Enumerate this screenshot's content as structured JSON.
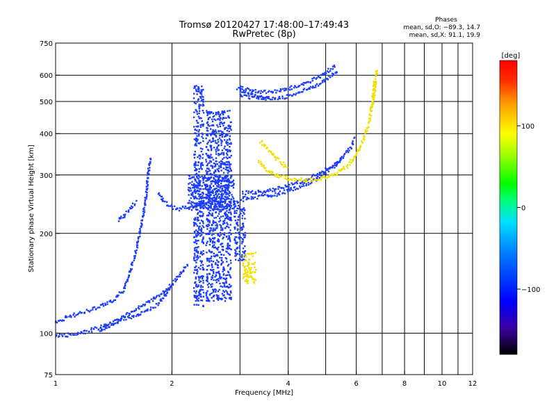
{
  "chart_data": {
    "type": "scatter",
    "title": "Tromsø 20120427 17:48:00–17:49:43",
    "subtitle": "RwPretec (8p)",
    "xlabel": "Frequency [MHz]",
    "ylabel": "Stationary phase Virtual Height [km]",
    "x_scale": "log",
    "y_scale": "log",
    "xlim": [
      1,
      12
    ],
    "ylim": [
      75,
      750
    ],
    "x_ticks": [
      1,
      2,
      4,
      6,
      8,
      10,
      12
    ],
    "x_tick_labels": [
      "1",
      "2",
      "4",
      "6",
      "8",
      "10",
      "12"
    ],
    "x_gridlines": [
      2,
      3,
      4,
      5,
      6,
      7,
      8,
      9,
      10,
      11
    ],
    "y_ticks": [
      75,
      100,
      200,
      300,
      400,
      500,
      600,
      750
    ],
    "y_tick_labels": [
      "75",
      "100",
      "200",
      "300",
      "400",
      "500",
      "600",
      "750"
    ],
    "y_gridlines": [
      100,
      200,
      300,
      400,
      500,
      600
    ],
    "grid": true,
    "phase_stats": {
      "header": "Phases",
      "line_o": "mean, sd,O:  −89.3, 14.7",
      "line_x": "mean, sd,X:  91.1, 19.9"
    },
    "colorbar": {
      "label": "[deg]",
      "ticks": [
        100,
        0,
        -100
      ],
      "tick_labels": [
        "100",
        "0",
        "−100"
      ],
      "range": [
        -180,
        180
      ],
      "colors": [
        "#000000",
        "#3a00a0",
        "#0000ff",
        "#0080ff",
        "#00e0ff",
        "#00ff80",
        "#00ff00",
        "#a0ff00",
        "#ffff00",
        "#ffa000",
        "#ff3000",
        "#ff0000"
      ]
    },
    "series": [
      {
        "mode": "O",
        "color": "#1a3cff",
        "traces": [
          {
            "kind": "path",
            "x": [
              1.0,
              1.1,
              1.2,
              1.3,
              1.4,
              1.5,
              1.6,
              1.7,
              1.8,
              1.9,
              2.0,
              2.1,
              2.2
            ],
            "y": [
              98,
              99,
              101,
              104,
              107,
              112,
              118,
              122,
              127,
              133,
              140,
              150,
              162
            ]
          },
          {
            "kind": "path",
            "x": [
              1.0,
              1.1,
              1.25,
              1.4,
              1.5,
              1.55,
              1.6,
              1.65,
              1.7,
              1.73,
              1.76
            ],
            "y": [
              108,
              113,
              118,
              125,
              135,
              150,
              170,
              200,
              240,
              290,
              340
            ]
          },
          {
            "kind": "path",
            "x": [
              1.3,
              1.4,
              1.5,
              1.6,
              1.7,
              1.8,
              1.9,
              2.0
            ],
            "y": [
              102,
              106,
              110,
              113,
              116,
              120,
              128,
              140
            ]
          },
          {
            "kind": "path",
            "x": [
              1.45,
              1.5,
              1.55,
              1.62
            ],
            "y": [
              220,
              225,
              235,
              250
            ]
          },
          {
            "kind": "path",
            "x": [
              1.85,
              1.9,
              2.0,
              2.1,
              2.2,
              2.3,
              2.4,
              2.5,
              2.6,
              2.7,
              2.8,
              2.9
            ],
            "y": [
              265,
              250,
              240,
              237,
              240,
              242,
              244,
              246,
              248,
              250,
              252,
              255
            ]
          },
          {
            "kind": "band",
            "x": [
              2.28,
              2.42
            ],
            "y": [
              120,
              560
            ]
          },
          {
            "kind": "band",
            "x": [
              2.45,
              2.85
            ],
            "y": [
              125,
              470
            ]
          },
          {
            "kind": "band",
            "x": [
              2.2,
              2.9
            ],
            "y": [
              235,
              300
            ]
          },
          {
            "kind": "band",
            "x": [
              2.9,
              3.1
            ],
            "y": [
              165,
              250
            ]
          },
          {
            "kind": "path",
            "x": [
              3.0,
              3.2,
              3.4,
              3.6,
              3.8,
              4.0,
              4.3,
              4.6,
              4.9,
              5.2,
              5.5,
              5.8,
              5.95
            ],
            "y": [
              255,
              256,
              258,
              260,
              264,
              270,
              277,
              287,
              300,
              316,
              337,
              362,
              390
            ]
          },
          {
            "kind": "path",
            "x": [
              3.05,
              3.25,
              3.45,
              3.65,
              3.85,
              4.05,
              4.3,
              4.55,
              4.8,
              5.05,
              5.3,
              5.55
            ],
            "y": [
              265,
              266,
              268,
              271,
              275,
              280,
              286,
              294,
              303,
              313,
              325,
              340
            ]
          },
          {
            "kind": "path",
            "x": [
              3.0,
              3.3,
              3.6,
              3.9,
              4.2,
              4.5,
              4.8,
              5.1,
              5.4
            ],
            "y": [
              520,
              512,
              510,
              515,
              528,
              545,
              565,
              590,
              620
            ]
          },
          {
            "kind": "path",
            "x": [
              3.0,
              3.2,
              3.5,
              3.8,
              4.1,
              4.4,
              4.7,
              5.0,
              5.3
            ],
            "y": [
              550,
              540,
              533,
              538,
              550,
              565,
              585,
              610,
              640
            ]
          },
          {
            "kind": "path",
            "x": [
              2.95,
              3.1,
              3.25,
              3.4,
              3.55
            ],
            "y": [
              545,
              532,
              522,
              515,
              510
            ]
          }
        ]
      },
      {
        "mode": "X",
        "color": "#f0e000",
        "traces": [
          {
            "kind": "path",
            "x": [
              3.35,
              3.5,
              3.7,
              3.9,
              4.1,
              4.3,
              4.5,
              4.7,
              4.9,
              5.1,
              5.3,
              5.5,
              5.7,
              5.9,
              6.1,
              6.3,
              6.5,
              6.6,
              6.7
            ],
            "y": [
              330,
              312,
              300,
              295,
              292,
              290,
              290,
              291,
              293,
              297,
              302,
              310,
              320,
              335,
              357,
              390,
              440,
              500,
              580
            ]
          },
          {
            "kind": "path",
            "x": [
              3.4,
              3.55,
              3.7,
              3.85,
              4.0
            ],
            "y": [
              380,
              360,
              340,
              325,
              315
            ]
          },
          {
            "kind": "path",
            "x": [
              6.6,
              6.7,
              6.75,
              6.8
            ],
            "y": [
              480,
              540,
              590,
              625
            ]
          },
          {
            "kind": "band",
            "x": [
              3.05,
              3.3
            ],
            "y": [
              140,
              175
            ]
          }
        ]
      }
    ]
  }
}
